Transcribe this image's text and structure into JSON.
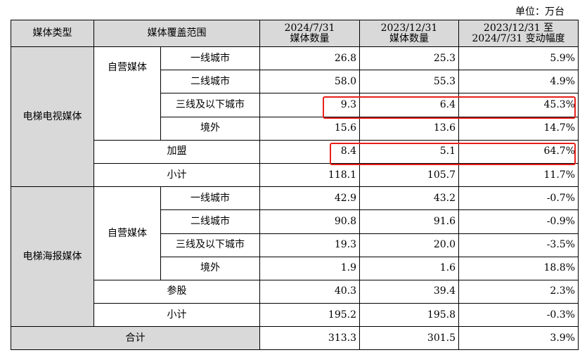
{
  "unit_label": "单位：万台",
  "headers": {
    "media_type": "媒体类型",
    "coverage": "媒体覆盖范围",
    "col_2024_line1": "2024/7/31",
    "col_2024_line2": "媒体数量",
    "col_2023_line1": "2023/12/31",
    "col_2023_line2": "媒体数量",
    "col_change_line1": "2023/12/31 至",
    "col_change_line2": "2024/7/31 变动幅度"
  },
  "groups": [
    {
      "name": "电梯电视媒体",
      "self_label": "自营媒体",
      "self_rows": [
        {
          "label": "一线城市",
          "v2024": "26.8",
          "v2023": "25.3",
          "change": "5.9%"
        },
        {
          "label": "二线城市",
          "v2024": "58.0",
          "v2023": "55.3",
          "change": "4.9%"
        },
        {
          "label": "三线及以下城市",
          "v2024": "9.3",
          "v2023": "6.4",
          "change": "45.3%"
        },
        {
          "label": "境外",
          "v2024": "15.6",
          "v2023": "13.6",
          "change": "14.7%"
        }
      ],
      "other": {
        "label": "加盟",
        "v2024": "8.4",
        "v2023": "5.1",
        "change": "64.7%"
      },
      "subtotal": {
        "label": "小计",
        "v2024": "118.1",
        "v2023": "105.7",
        "change": "11.7%"
      }
    },
    {
      "name": "电梯海报媒体",
      "self_label": "自营媒体",
      "self_rows": [
        {
          "label": "一线城市",
          "v2024": "42.9",
          "v2023": "43.2",
          "change": "-0.7%"
        },
        {
          "label": "二线城市",
          "v2024": "90.8",
          "v2023": "91.6",
          "change": "-0.9%"
        },
        {
          "label": "三线及以下城市",
          "v2024": "19.3",
          "v2023": "20.0",
          "change": "-3.5%"
        },
        {
          "label": "境外",
          "v2024": "1.9",
          "v2023": "1.6",
          "change": "18.8%"
        }
      ],
      "other": {
        "label": "参股",
        "v2024": "40.3",
        "v2023": "39.4",
        "change": "2.3%"
      },
      "subtotal": {
        "label": "小计",
        "v2024": "195.2",
        "v2023": "195.8",
        "change": "-0.3%"
      }
    }
  ],
  "total": {
    "label": "合计",
    "v2024": "313.3",
    "v2023": "301.5",
    "change": "3.9%"
  },
  "colors": {
    "highlight": "#e8201a",
    "shade": "#d9d9d9"
  }
}
